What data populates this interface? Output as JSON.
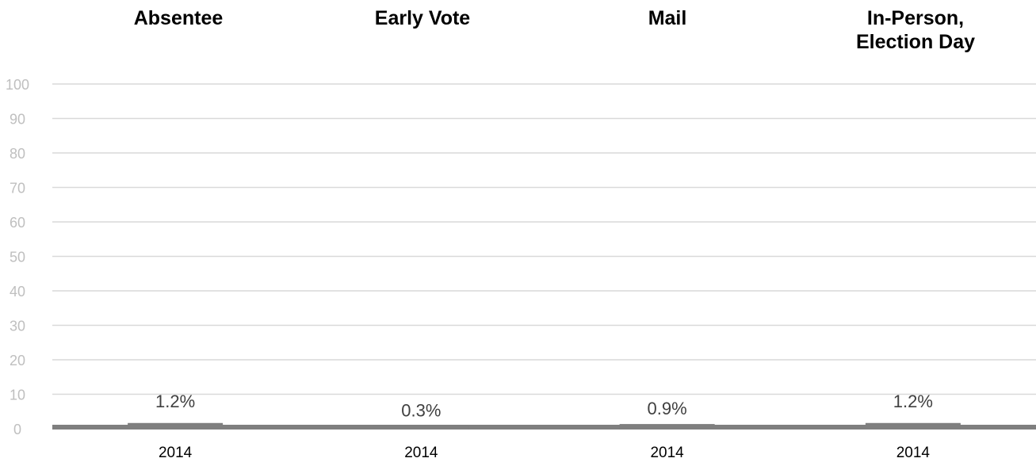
{
  "chart_data": {
    "type": "bar",
    "panels": [
      {
        "title": [
          "Absentee"
        ],
        "category": "2014",
        "value": 1.2,
        "label": "1.2%"
      },
      {
        "title": [
          "Early Vote"
        ],
        "category": "2014",
        "value": 0.3,
        "label": "0.3%"
      },
      {
        "title": [
          "Mail"
        ],
        "category": "2014",
        "value": 0.9,
        "label": "0.9%"
      },
      {
        "title": [
          "In-Person,",
          "Election Day"
        ],
        "category": "2014",
        "value": 1.2,
        "label": "1.2%"
      }
    ],
    "y_ticks": [
      "0",
      "10",
      "20",
      "30",
      "40",
      "50",
      "60",
      "70",
      "80",
      "90",
      "100"
    ],
    "ylim": [
      0,
      100
    ],
    "grid": true,
    "colors": {
      "bar": "#7f7f7f",
      "grid": "#d9d9d9",
      "tick": "#bfbfbf",
      "label": "#404040"
    }
  }
}
